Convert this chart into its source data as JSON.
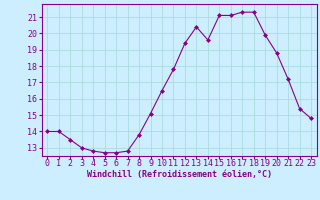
{
  "hours": [
    0,
    1,
    2,
    3,
    4,
    5,
    6,
    7,
    8,
    9,
    10,
    11,
    12,
    13,
    14,
    15,
    16,
    17,
    18,
    19,
    20,
    21,
    22,
    23
  ],
  "values": [
    14.0,
    14.0,
    13.5,
    13.0,
    12.8,
    12.7,
    12.7,
    12.8,
    13.8,
    15.1,
    16.5,
    17.8,
    19.4,
    20.4,
    19.6,
    21.1,
    21.1,
    21.3,
    21.3,
    19.9,
    18.8,
    17.2,
    15.4,
    14.8
  ],
  "line_color": "#880088",
  "marker": "D",
  "marker_size": 2.0,
  "bg_color": "#cceeff",
  "grid_color": "#aadddd",
  "ylabel_ticks": [
    13,
    14,
    15,
    16,
    17,
    18,
    19,
    20,
    21
  ],
  "ylim": [
    12.5,
    21.8
  ],
  "xlim": [
    -0.5,
    23.5
  ],
  "xlabel": "Windchill (Refroidissement éolien,°C)",
  "xlabel_fontsize": 6.0,
  "tick_fontsize": 6.0,
  "spine_color": "#880088"
}
